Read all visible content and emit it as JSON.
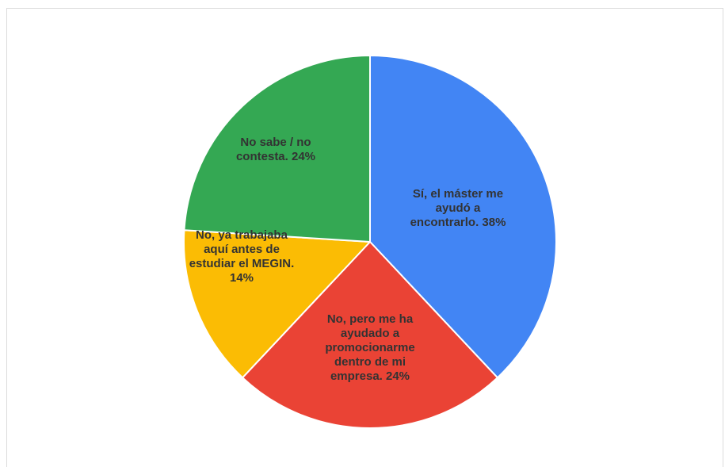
{
  "chart_data": {
    "type": "pie",
    "start_angle_deg": 0,
    "direction": "clockwise",
    "slice_border_color": "#ffffff",
    "slices": [
      {
        "label_lines": [
          "Sí, el máster me",
          "ayudó a",
          "encontrarlo. 38%"
        ],
        "value": 38,
        "color": "#4285f4"
      },
      {
        "label_lines": [
          "No, pero me ha",
          "ayudado a",
          "promocionarme",
          "dentro de mi",
          "empresa. 24%"
        ],
        "value": 24,
        "color": "#ea4335"
      },
      {
        "label_lines": [
          "No, ya trabajaba",
          "aquí antes de",
          "estudiar el MEGIN.",
          "14%"
        ],
        "value": 14,
        "color": "#fbbc04"
      },
      {
        "label_lines": [
          "No sabe / no",
          "contesta. 24%"
        ],
        "value": 24,
        "color": "#34a853"
      }
    ]
  }
}
